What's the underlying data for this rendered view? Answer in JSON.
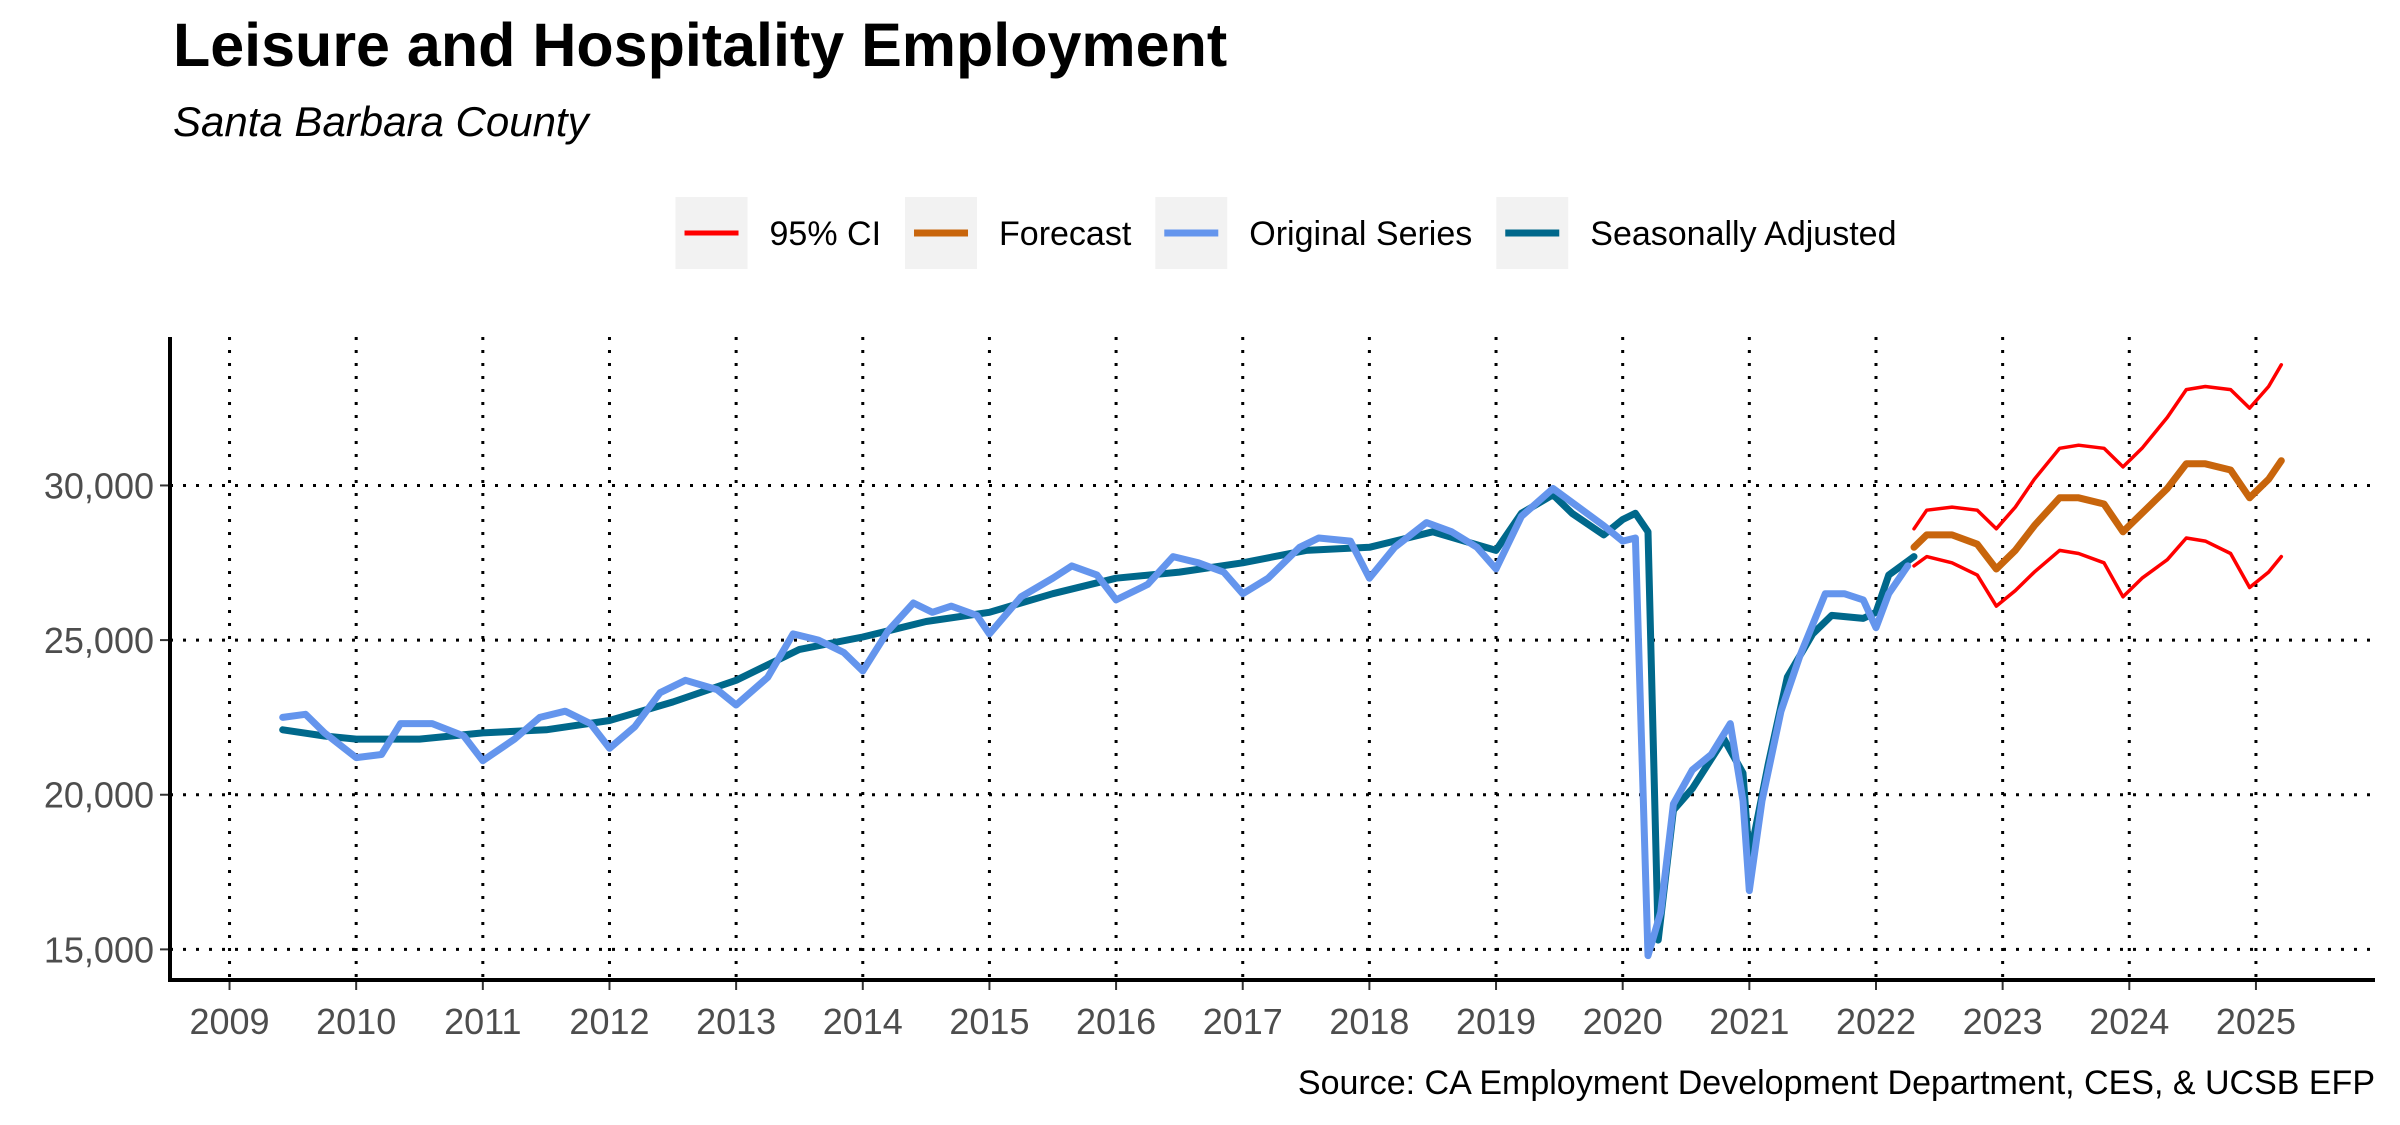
{
  "chart_data": {
    "type": "line",
    "title": "Leisure and Hospitality Employment",
    "subtitle": "Santa Barbara County",
    "source": "Source: CA Employment Development Department, CES, & UCSB EFP",
    "xlim": [
      2008.53,
      2025.94
    ],
    "ylim": [
      14010,
      34800
    ],
    "xticks": [
      2009,
      2010,
      2011,
      2012,
      2013,
      2014,
      2015,
      2016,
      2017,
      2018,
      2019,
      2020,
      2021,
      2022,
      2023,
      2024,
      2025
    ],
    "yticks": [
      {
        "value": 15000,
        "label": "15,000"
      },
      {
        "value": 20000,
        "label": "20,000"
      },
      {
        "value": 25000,
        "label": "25,000"
      },
      {
        "value": 30000,
        "label": "30,000"
      }
    ],
    "grid": true,
    "legend": "top",
    "series": [
      {
        "name": "95% CI",
        "color": "#ff0000",
        "x": [
          2022.3,
          2022.4,
          2022.6,
          2022.8,
          2022.95,
          2023.1,
          2023.25,
          2023.45,
          2023.6,
          2023.8,
          2023.95,
          2024.1,
          2024.3,
          2024.45,
          2024.6,
          2024.8,
          2024.95,
          2025.1,
          2025.2
        ],
        "lower": [
          27400,
          27700,
          27500,
          27100,
          26100,
          26600,
          27200,
          27900,
          27800,
          27500,
          26400,
          27000,
          27600,
          28300,
          28200,
          27800,
          26700,
          27200,
          27700
        ],
        "upper": [
          28600,
          29200,
          29300,
          29200,
          28600,
          29300,
          30200,
          31200,
          31300,
          31200,
          30600,
          31200,
          32200,
          33100,
          33200,
          33100,
          32500,
          33200,
          33900
        ]
      },
      {
        "name": "Forecast",
        "color": "#c8650c",
        "x": [
          2022.3,
          2022.4,
          2022.6,
          2022.8,
          2022.95,
          2023.1,
          2023.25,
          2023.45,
          2023.6,
          2023.8,
          2023.95,
          2024.1,
          2024.3,
          2024.45,
          2024.6,
          2024.8,
          2024.95,
          2025.1,
          2025.2
        ],
        "values": [
          28000,
          28400,
          28400,
          28100,
          27300,
          27900,
          28700,
          29600,
          29600,
          29400,
          28500,
          29100,
          29900,
          30700,
          30700,
          30500,
          29600,
          30200,
          30800
        ]
      },
      {
        "name": "Original Series",
        "color": "#6495ed",
        "x": [
          2009.42,
          2009.6,
          2009.75,
          2010.0,
          2010.2,
          2010.35,
          2010.6,
          2010.85,
          2011.0,
          2011.25,
          2011.45,
          2011.65,
          2011.85,
          2012.0,
          2012.2,
          2012.4,
          2012.6,
          2012.85,
          2013.0,
          2013.25,
          2013.45,
          2013.65,
          2013.85,
          2014.0,
          2014.2,
          2014.4,
          2014.55,
          2014.7,
          2014.9,
          2015.0,
          2015.25,
          2015.5,
          2015.65,
          2015.85,
          2016.0,
          2016.25,
          2016.45,
          2016.65,
          2016.85,
          2017.0,
          2017.2,
          2017.45,
          2017.6,
          2017.85,
          2018.0,
          2018.2,
          2018.45,
          2018.65,
          2018.85,
          2019.0,
          2019.2,
          2019.45,
          2019.65,
          2019.85,
          2020.0,
          2020.1,
          2020.2,
          2020.3,
          2020.4,
          2020.55,
          2020.7,
          2020.85,
          2020.95,
          2021.0,
          2021.1,
          2021.25,
          2021.4,
          2021.6,
          2021.75,
          2021.9,
          2022.0,
          2022.1,
          2022.25
        ],
        "values": [
          22500,
          22600,
          22000,
          21200,
          21300,
          22300,
          22300,
          21900,
          21100,
          21800,
          22500,
          22700,
          22300,
          21500,
          22200,
          23300,
          23700,
          23400,
          22900,
          23800,
          25200,
          25000,
          24600,
          24000,
          25300,
          26200,
          25900,
          26100,
          25800,
          25200,
          26400,
          27000,
          27400,
          27100,
          26300,
          26800,
          27700,
          27500,
          27200,
          26500,
          27000,
          28000,
          28300,
          28200,
          27000,
          28000,
          28800,
          28500,
          28000,
          27300,
          29000,
          29900,
          29300,
          28700,
          28200,
          28300,
          14800,
          16200,
          19700,
          20800,
          21300,
          22300,
          19800,
          16900,
          19800,
          22700,
          24500,
          26500,
          26500,
          26300,
          25400,
          26500,
          27400
        ]
      },
      {
        "name": "Seasonally Adjusted",
        "color": "#00688b",
        "x": [
          2009.42,
          2009.75,
          2010.0,
          2010.5,
          2011.0,
          2011.5,
          2012.0,
          2012.5,
          2013.0,
          2013.5,
          2014.0,
          2014.5,
          2015.0,
          2015.5,
          2016.0,
          2016.5,
          2017.0,
          2017.5,
          2018.0,
          2018.5,
          2019.0,
          2019.2,
          2019.45,
          2019.6,
          2019.85,
          2020.0,
          2020.1,
          2020.2,
          2020.28,
          2020.4,
          2020.55,
          2020.8,
          2020.95,
          2021.0,
          2021.15,
          2021.3,
          2021.5,
          2021.65,
          2021.9,
          2022.0,
          2022.1,
          2022.3
        ],
        "values": [
          22100,
          21900,
          21800,
          21800,
          22000,
          22100,
          22400,
          23000,
          23700,
          24700,
          25100,
          25600,
          25900,
          26500,
          27000,
          27200,
          27500,
          27900,
          28000,
          28500,
          27900,
          29100,
          29700,
          29100,
          28400,
          28900,
          29100,
          28500,
          15300,
          19500,
          20200,
          21800,
          20700,
          17900,
          21000,
          23800,
          25200,
          25800,
          25700,
          25900,
          27100,
          27700
        ]
      }
    ]
  }
}
